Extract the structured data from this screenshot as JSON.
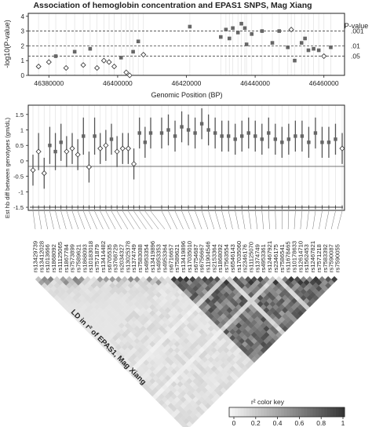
{
  "title": "Association of hemoglobin concentration and EPAS1 SNPS, Mag Xiang",
  "top_panel": {
    "ylabel": "-log10(P-value)",
    "xlabel": "Genomic Position (BP)",
    "xtick_labels": [
      "46380000",
      "46400000",
      "46420000",
      "46440000",
      "46460000"
    ],
    "ytick_labels": [
      "0",
      "1",
      "2",
      "3",
      "4"
    ],
    "pvalue_title": "P-value",
    "pvalue_labels": [
      ".001",
      ".01",
      ".05"
    ]
  },
  "mid_panel": {
    "ylabel": "Est hb diff between genotypes (gm/dL)",
    "ytick_labels": [
      "-1.5",
      "-1",
      "-0.5",
      "0",
      "0.5",
      "1",
      "1.5"
    ]
  },
  "ld_panel": {
    "label": "LD in r² of EPAS1, Mag Xiang",
    "color_key_title": "r² color key",
    "color_key_ticks": [
      "0",
      "0.2",
      "0.4",
      "0.6",
      "0.8",
      "1"
    ]
  },
  "colors": {
    "marker": "#666666",
    "line": "#555555",
    "grid": "#e6e6e6"
  },
  "chart_data": [
    {
      "type": "scatter",
      "title": "Association of hemoglobin concentration and EPAS1 SNPS, Mag Xiang",
      "xlabel": "Genomic Position (BP)",
      "ylabel": "-log10(P-value)",
      "xlim": [
        46374000,
        46466000
      ],
      "ylim": [
        0,
        4.2
      ],
      "reference_lines": [
        {
          "label": ".001",
          "y": 3
        },
        {
          "label": ".01",
          "y": 2
        },
        {
          "label": ".05",
          "y": 1.3
        }
      ],
      "grid": false,
      "series": [
        {
          "x": [
            46377000,
            46380000,
            46382000,
            46385000,
            46387500,
            46390000,
            46392000,
            46394000,
            46396000,
            46397500,
            46399000,
            46401000,
            46402500,
            46403500,
            46404500,
            46406000,
            46407500,
            46421000,
            46430000,
            46431500,
            46432500,
            46433500,
            46435000,
            46436000,
            46437000,
            46437500,
            46439000,
            46442000,
            46445000,
            46447000,
            46449500,
            46450500,
            46451500,
            46453500,
            46454500,
            46455500,
            46457000,
            46458500,
            46460000,
            46462000
          ],
          "y": [
            0.6,
            0.9,
            1.3,
            0.5,
            1.6,
            0.7,
            1.8,
            0.5,
            1.0,
            0.9,
            0.6,
            1.2,
            0.2,
            0.0,
            1.6,
            2.3,
            1.4,
            3.3,
            2.6,
            3.1,
            2.5,
            3.2,
            2.9,
            3.5,
            3.2,
            2.1,
            2.8,
            3.0,
            2.2,
            3.0,
            1.9,
            3.1,
            1.0,
            2.2,
            2.5,
            1.7,
            1.8,
            1.7,
            1.3,
            1.9
          ],
          "filled": [
            false,
            false,
            true,
            false,
            true,
            false,
            true,
            false,
            false,
            false,
            false,
            true,
            false,
            false,
            true,
            true,
            false,
            true,
            true,
            true,
            true,
            true,
            true,
            true,
            true,
            true,
            true,
            true,
            true,
            true,
            true,
            false,
            true,
            true,
            true,
            true,
            true,
            true,
            false,
            true
          ]
        }
      ]
    },
    {
      "type": "scatter",
      "ylabel": "Est hb diff between genotypes (gm/dL)",
      "ylim": [
        -1.6,
        1.8
      ],
      "snps": [
        "rs13429739",
        "rs13412028",
        "rs1013666",
        "rs1868092",
        "rs11125065",
        "rs1867784",
        "rs7573899",
        "rs7589621",
        "rs1868093",
        "rs10183018",
        "rs7571879",
        "rs13414482",
        "rs6705535",
        "rs3768729",
        "rs2034327",
        "rs13025378",
        "rs1374749",
        "rs7583088",
        "rs4953354",
        "rs13419896",
        "rs4953353",
        "rs4953364",
        "rs6716657",
        "rs7589621",
        "rs13419896",
        "rs17035010",
        "rs6754687",
        "rs6756667",
        "rs11904546",
        "rs2153364",
        "rs1868092",
        "rs7563554",
        "rs6546143",
        "rs17035060",
        "rs2346176",
        "rs11125070",
        "rs1374749",
        "rs4953361",
        "rs12467921",
        "rs2346175",
        "rs7586541",
        "rs11678465",
        "rs10178633",
        "rs12614710",
        "rs1562453",
        "rs12467821",
        "rs7571218",
        "rs7583392",
        "rs7590087",
        "rs7590055"
      ],
      "estimate": [
        -0.3,
        0.3,
        -0.4,
        0.5,
        0.3,
        0.6,
        0.3,
        0.4,
        0.2,
        0.8,
        -0.2,
        0.8,
        0.4,
        0.5,
        0.7,
        0.3,
        0.4,
        0.4,
        -0.1,
        0.9,
        0.6,
        0.9,
        0.9,
        1.0,
        0.8,
        1.1,
        1.0,
        0.9,
        1.2,
        1.0,
        0.9,
        0.8,
        0.8,
        0.7,
        0.8,
        0.9,
        0.8,
        0.7,
        0.9,
        0.7,
        0.6,
        0.7,
        0.8,
        0.8,
        0.6,
        0.9,
        0.6,
        0.6,
        0.7,
        0.4
      ],
      "ci_low": [
        -0.8,
        -0.3,
        -0.9,
        -0.1,
        -0.3,
        0.0,
        -0.2,
        -0.1,
        -0.3,
        0.2,
        -0.7,
        0.2,
        -0.1,
        0.0,
        0.2,
        -0.2,
        -0.1,
        -0.1,
        -0.6,
        0.4,
        0.1,
        0.4,
        0.4,
        0.5,
        0.3,
        0.6,
        0.5,
        0.4,
        0.7,
        0.5,
        0.4,
        0.3,
        0.3,
        0.2,
        0.3,
        0.4,
        0.3,
        0.2,
        0.4,
        0.2,
        0.1,
        0.2,
        0.3,
        0.3,
        0.1,
        0.4,
        0.1,
        0.1,
        0.2,
        -0.1
      ],
      "ci_high": [
        0.2,
        0.9,
        0.1,
        1.1,
        0.9,
        1.2,
        0.8,
        0.9,
        0.7,
        1.4,
        0.3,
        1.4,
        0.9,
        1.0,
        1.2,
        0.8,
        0.9,
        0.9,
        0.4,
        1.4,
        1.1,
        1.4,
        1.4,
        1.5,
        1.3,
        1.6,
        1.5,
        1.4,
        1.7,
        1.5,
        1.4,
        1.3,
        1.3,
        1.2,
        1.3,
        1.4,
        1.3,
        1.2,
        1.4,
        1.2,
        1.1,
        1.2,
        1.3,
        1.3,
        1.1,
        1.4,
        1.1,
        1.1,
        1.2,
        0.9
      ],
      "filled": [
        false,
        false,
        false,
        true,
        true,
        true,
        false,
        false,
        false,
        true,
        false,
        true,
        false,
        false,
        true,
        false,
        false,
        false,
        false,
        true,
        true,
        true,
        true,
        true,
        true,
        true,
        true,
        true,
        true,
        true,
        true,
        true,
        true,
        true,
        true,
        true,
        true,
        true,
        true,
        true,
        true,
        true,
        true,
        true,
        true,
        true,
        true,
        true,
        true,
        false
      ]
    },
    {
      "type": "heatmap",
      "title": "LD in r² of EPAS1, Mag Xiang",
      "scale": [
        0,
        1
      ],
      "color_key": "r² color key"
    }
  ]
}
